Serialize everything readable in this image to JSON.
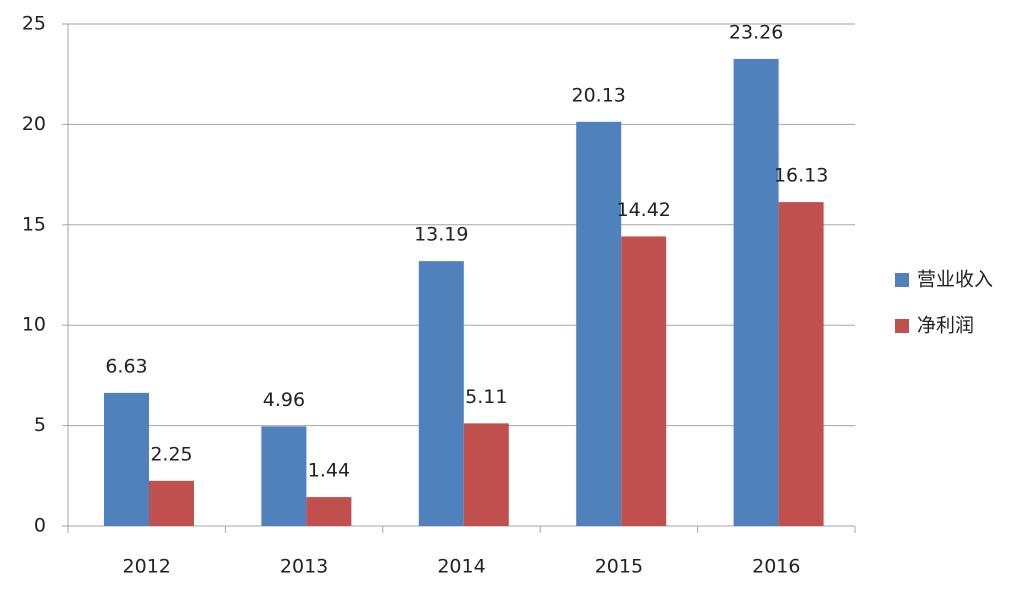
{
  "chart_data": {
    "type": "bar",
    "categories": [
      "2012",
      "2013",
      "2014",
      "2015",
      "2016"
    ],
    "series": [
      {
        "name": "营业收入",
        "color": "#4f81bd",
        "values": [
          6.63,
          4.96,
          13.19,
          20.13,
          23.26
        ]
      },
      {
        "name": "净利润",
        "color": "#c0504d",
        "values": [
          2.25,
          1.44,
          5.11,
          14.42,
          16.13
        ]
      }
    ],
    "ylim": [
      0,
      25
    ],
    "yticks": [
      0,
      5,
      10,
      15,
      20,
      25
    ],
    "grid": true,
    "legend": "right"
  }
}
